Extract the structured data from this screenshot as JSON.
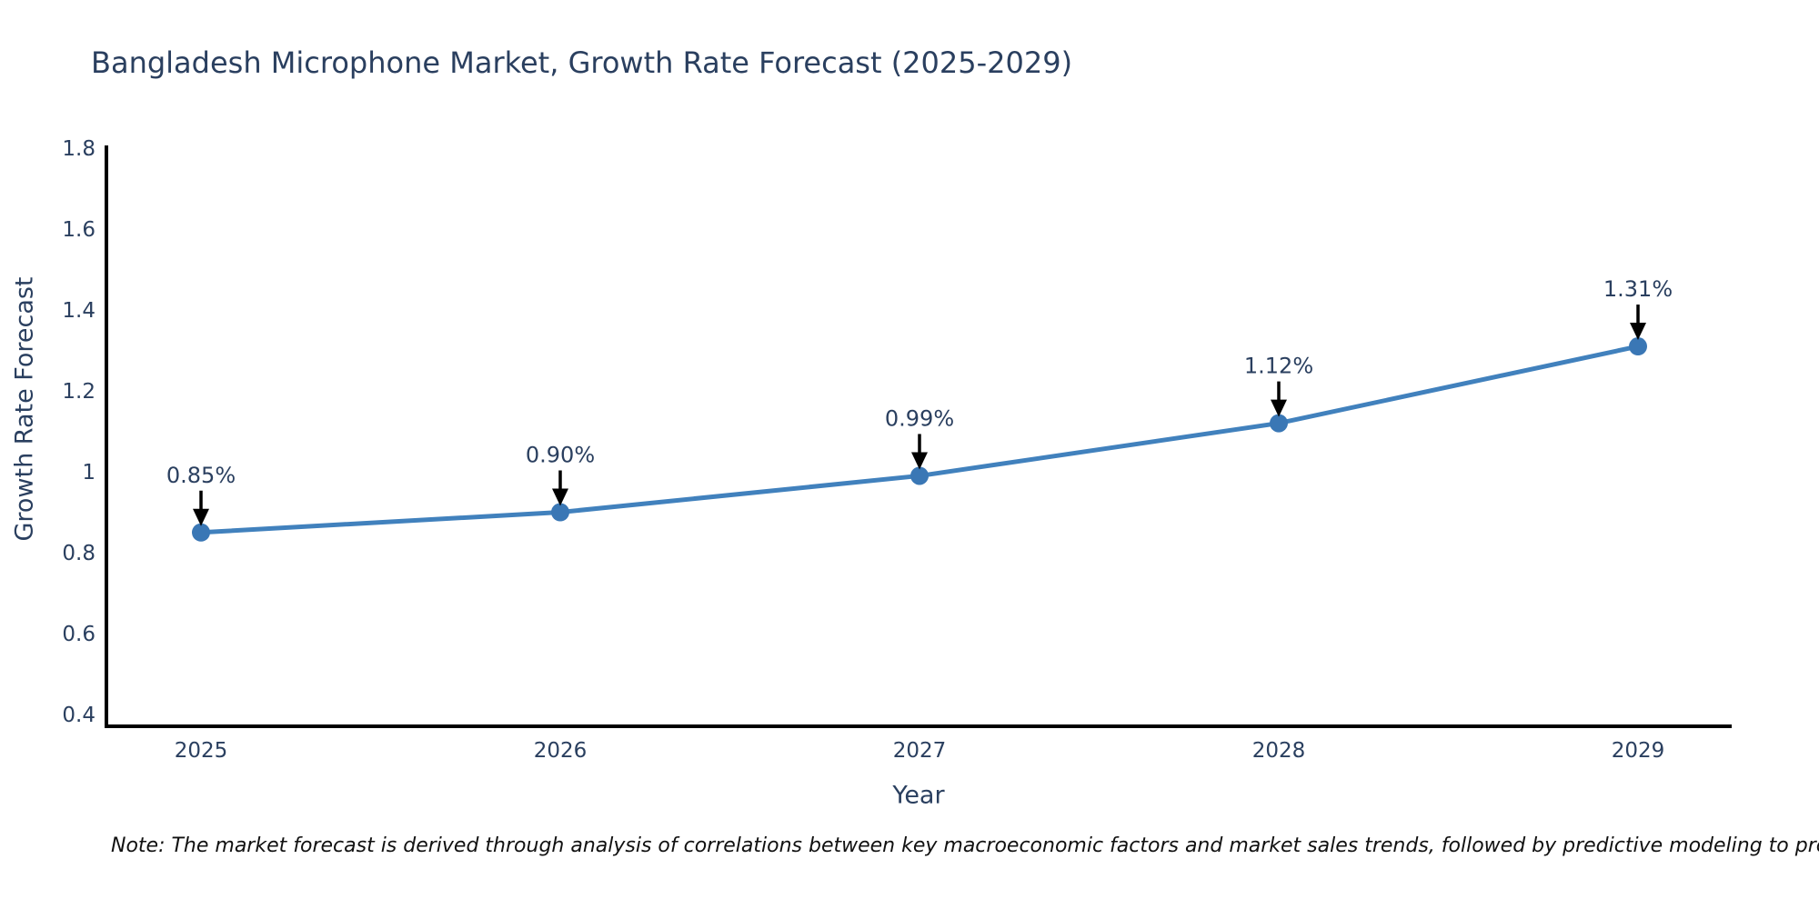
{
  "page": {
    "background": "#ffffff"
  },
  "chart_data": {
    "type": "line",
    "title": "Bangladesh Microphone Market, Growth Rate Forecast (2025-2029)",
    "xlabel": "Year",
    "ylabel": "Growth Rate Forecast",
    "x": [
      2025,
      2026,
      2027,
      2028,
      2029
    ],
    "series": [
      {
        "name": "Growth Rate Forecast",
        "values": [
          0.85,
          0.9,
          0.99,
          1.12,
          1.31
        ]
      }
    ],
    "point_labels": [
      "0.85%",
      "0.90%",
      "0.99%",
      "1.12%",
      "1.31%"
    ],
    "xtick_labels": [
      "2025",
      "2026",
      "2027",
      "2028",
      "2029"
    ],
    "ytick_values": [
      0.4,
      0.6,
      0.8,
      1.0,
      1.2,
      1.4,
      1.6,
      1.8
    ],
    "ytick_labels": [
      "0.4",
      "0.6",
      "0.8",
      "1",
      "1.2",
      "1.4",
      "1.6",
      "1.8"
    ],
    "xlim": [
      2024.74,
      2029.26
    ],
    "ylim": [
      0.36,
      1.81
    ],
    "grid": false,
    "legend_position": "none",
    "marker_shape": "circle",
    "annotation_arrow_direction": "down",
    "colors": {
      "line": "#4181bd",
      "marker": "#3a77b5",
      "axis": "#000000",
      "tick_text": "#2a3f5f",
      "annotation_text": "#2a3f5f",
      "arrow": "#000000",
      "title_text": "#2a3f5f",
      "note_text": "#111111"
    }
  },
  "footer": {
    "note": "Note: The market forecast is derived through analysis of correlations between key macroeconomic factors and market sales trends, followed by predictive modeling to project future sales"
  }
}
